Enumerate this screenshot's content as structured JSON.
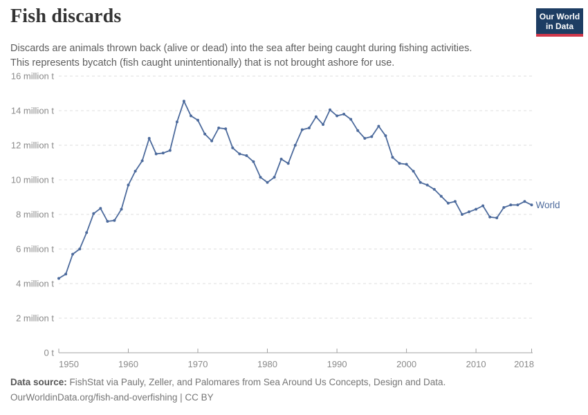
{
  "header": {
    "title": "Fish discards",
    "subtitle_lines": [
      "Discards are animals thrown back (alive or dead) into the sea after being caught during fishing activities.",
      "This represents bycatch (fish caught unintentionally) that is not brought ashore for use."
    ],
    "logo": {
      "line1": "Our World",
      "line2": "in Data",
      "bg_color": "#1d3d63",
      "bar_color": "#d0374a"
    }
  },
  "chart_data": {
    "type": "line",
    "title": "Fish discards",
    "xlabel": "",
    "ylabel": "",
    "unit": "million t",
    "xlim": [
      1950,
      2018
    ],
    "ylim": [
      0,
      16
    ],
    "grid": "horizontal-dashed",
    "legend_position": "end-of-line-label",
    "x": [
      1950,
      1951,
      1952,
      1953,
      1954,
      1955,
      1956,
      1957,
      1958,
      1959,
      1960,
      1961,
      1962,
      1963,
      1964,
      1965,
      1966,
      1967,
      1968,
      1969,
      1970,
      1971,
      1972,
      1973,
      1974,
      1975,
      1976,
      1977,
      1978,
      1979,
      1980,
      1981,
      1982,
      1983,
      1984,
      1985,
      1986,
      1987,
      1988,
      1989,
      1990,
      1991,
      1992,
      1993,
      1994,
      1995,
      1996,
      1997,
      1998,
      1999,
      2000,
      2001,
      2002,
      2003,
      2004,
      2005,
      2006,
      2007,
      2008,
      2009,
      2010,
      2011,
      2012,
      2013,
      2014,
      2015,
      2016,
      2017,
      2018
    ],
    "series": [
      {
        "name": "World",
        "color": "#4C6A9C",
        "values": [
          4.3,
          4.55,
          5.7,
          6.0,
          6.95,
          8.05,
          8.35,
          7.6,
          7.65,
          8.3,
          9.7,
          10.5,
          11.1,
          12.4,
          11.5,
          11.55,
          11.7,
          13.35,
          14.55,
          13.7,
          13.45,
          12.65,
          12.25,
          13.0,
          12.95,
          11.85,
          11.5,
          11.4,
          11.05,
          10.15,
          9.85,
          10.15,
          11.2,
          10.95,
          12.0,
          12.9,
          13.0,
          13.65,
          13.2,
          14.05,
          13.7,
          13.8,
          13.5,
          12.85,
          12.4,
          12.5,
          13.1,
          12.55,
          11.3,
          10.95,
          10.9,
          10.5,
          9.85,
          9.7,
          9.45,
          9.05,
          8.65,
          8.75,
          8.0,
          8.15,
          8.3,
          8.5,
          7.85,
          7.8,
          8.4,
          8.55,
          8.55,
          8.75,
          8.55
        ]
      }
    ],
    "y_ticks": [
      {
        "value": 0,
        "label": "0 t"
      },
      {
        "value": 2,
        "label": "2 million t"
      },
      {
        "value": 4,
        "label": "4 million t"
      },
      {
        "value": 6,
        "label": "6 million t"
      },
      {
        "value": 8,
        "label": "8 million t"
      },
      {
        "value": 10,
        "label": "10 million t"
      },
      {
        "value": 12,
        "label": "12 million t"
      },
      {
        "value": 14,
        "label": "14 million t"
      },
      {
        "value": 16,
        "label": "16 million t"
      }
    ],
    "x_ticks": [
      {
        "value": 1950,
        "label": "1950"
      },
      {
        "value": 1960,
        "label": "1960"
      },
      {
        "value": 1970,
        "label": "1970"
      },
      {
        "value": 1980,
        "label": "1980"
      },
      {
        "value": 1990,
        "label": "1990"
      },
      {
        "value": 2000,
        "label": "2000"
      },
      {
        "value": 2010,
        "label": "2010"
      },
      {
        "value": 2018,
        "label": "2018"
      }
    ]
  },
  "footer": {
    "datasource_label": "Data source:",
    "datasource_text": "FishStat via Pauly, Zeller, and Palomares from Sea Around Us Concepts, Design and Data.",
    "url": "OurWorldinData.org/fish-and-overfishing",
    "separator": "|",
    "license": "CC BY"
  },
  "colors": {
    "line": "#4C6A9C",
    "grid": "#dcdcdc",
    "axis": "#a0a0a0",
    "tick_label": "#8a8a8a"
  }
}
